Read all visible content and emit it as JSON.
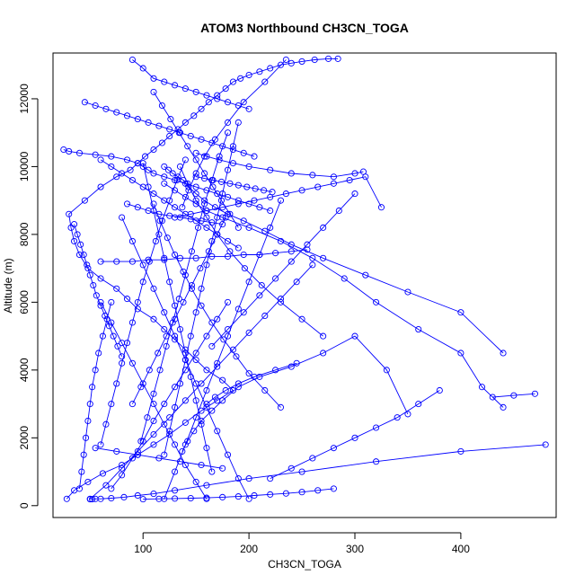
{
  "chart_data": {
    "type": "scatter",
    "title": "ATOM3 Northbound CH3CN_TOGA",
    "xlabel": "CH3CN_TOGA",
    "ylabel": "Altitude (m)",
    "xlim": [
      15,
      490
    ],
    "ylim": [
      -350,
      13350
    ],
    "x_ticks": [
      100,
      200,
      300,
      400
    ],
    "x_tick_labels": [
      "100",
      "200",
      "300",
      "400"
    ],
    "y_ticks": [
      0,
      2000,
      4000,
      6000,
      8000,
      10000,
      12000
    ],
    "y_tick_labels": [
      "0",
      "2000",
      "4000",
      "6000",
      "8000",
      "10000",
      "12000"
    ],
    "grid": false,
    "color": "#0000ff",
    "marker": "open-circle",
    "connected": true,
    "series": [
      {
        "x": [
          28,
          35,
          48,
          62,
          80,
          95,
          110,
          125,
          140,
          155,
          170,
          185,
          175,
          160,
          150,
          140,
          130,
          120,
          110,
          95,
          85,
          75,
          60,
          48,
          40,
          35,
          32,
          30,
          45,
          60,
          75,
          88,
          95,
          102,
          110,
          118,
          125,
          133,
          140,
          148,
          155,
          162,
          170,
          178,
          185,
          192,
          200,
          210,
          220,
          230,
          240,
          250,
          262,
          275,
          284
        ],
        "y": [
          200,
          450,
          700,
          950,
          1200,
          1500,
          1800,
          2100,
          2450,
          2800,
          3100,
          3400,
          3700,
          4000,
          4300,
          4600,
          4900,
          5200,
          5500,
          5800,
          6100,
          6400,
          6700,
          7000,
          7400,
          7800,
          8200,
          8600,
          9000,
          9400,
          9700,
          9900,
          10100,
          10300,
          10500,
          10700,
          10900,
          11100,
          11300,
          11500,
          11700,
          11900,
          12100,
          12300,
          12500,
          12600,
          12700,
          12800,
          12900,
          13000,
          13050,
          13100,
          13150,
          13180,
          13180
        ]
      },
      {
        "x": [
          480,
          400,
          320,
          250,
          200,
          160,
          130,
          110,
          95,
          82,
          70,
          60,
          55,
          52,
          50
        ],
        "y": [
          1800,
          1600,
          1300,
          1000,
          800,
          600,
          450,
          350,
          300,
          250,
          220,
          200,
          200,
          190,
          190
        ]
      },
      {
        "x": [
          470,
          450,
          430,
          440,
          420,
          400,
          360,
          320,
          290,
          260,
          230,
          200,
          175,
          160,
          150,
          140,
          130,
          120
        ],
        "y": [
          3300,
          3250,
          3200,
          2900,
          3500,
          4500,
          5200,
          6000,
          6700,
          7300,
          7800,
          8200,
          8500,
          8700,
          8900,
          9100,
          9300,
          9500
        ]
      },
      {
        "x": [
          440,
          400,
          350,
          310,
          270,
          240,
          215,
          195,
          180,
          168,
          158,
          150,
          143,
          138,
          133,
          128,
          124,
          120
        ],
        "y": [
          4500,
          5700,
          6300,
          6800,
          7300,
          7700,
          8100,
          8400,
          8600,
          8800,
          9000,
          9200,
          9400,
          9600,
          9700,
          9800,
          9900,
          10000
        ]
      },
      {
        "x": [
          350,
          330,
          300,
          270,
          240,
          210,
          190,
          175,
          165,
          155,
          148,
          142,
          137
        ],
        "y": [
          2700,
          4000,
          5000,
          4500,
          4100,
          3800,
          3500,
          3100,
          2800,
          2500,
          2200,
          1900,
          1600
        ]
      },
      {
        "x": [
          308,
          300,
          280,
          260,
          240,
          220,
          200,
          185,
          172,
          160,
          150
        ],
        "y": [
          9850,
          9800,
          9700,
          9750,
          9800,
          9900,
          10000,
          10100,
          10200,
          10300,
          10400
        ]
      },
      {
        "x": [
          25,
          30,
          40,
          55,
          70,
          85,
          95,
          100,
          105,
          110,
          120,
          130,
          140,
          150,
          160,
          170,
          180,
          190,
          200,
          210,
          220
        ],
        "y": [
          10500,
          10450,
          10400,
          10350,
          10300,
          10200,
          10100,
          10000,
          9900,
          9800,
          9700,
          9600,
          9500,
          9400,
          9300,
          9200,
          9100,
          9000,
          8900,
          8800,
          8700
        ]
      },
      {
        "x": [
          45,
          55,
          65,
          75,
          85,
          95,
          105,
          115,
          125,
          135,
          145,
          155,
          165,
          175,
          185,
          195,
          205
        ],
        "y": [
          11900,
          11800,
          11700,
          11600,
          11500,
          11400,
          11300,
          11200,
          11100,
          11000,
          10900,
          10800,
          10700,
          10600,
          10500,
          10400,
          10300
        ]
      },
      {
        "x": [
          90,
          100,
          110,
          120,
          130,
          140,
          150,
          160,
          170,
          180,
          190,
          200
        ],
        "y": [
          13150,
          12900,
          12600,
          12500,
          12400,
          12300,
          12200,
          12100,
          12000,
          11900,
          11800,
          11700
        ]
      },
      {
        "x": [
          130,
          145,
          160,
          175,
          190,
          205,
          220,
          235,
          250,
          265,
          280,
          295,
          310,
          325
        ],
        "y": [
          8500,
          8600,
          8700,
          8800,
          8900,
          9000,
          9100,
          9200,
          9300,
          9400,
          9500,
          9600,
          9700,
          8800
        ]
      },
      {
        "x": [
          60,
          75,
          90,
          105,
          120,
          135,
          150,
          165,
          180,
          195,
          210,
          225,
          240,
          255
        ],
        "y": [
          7200,
          7200,
          7200,
          7250,
          7250,
          7300,
          7300,
          7350,
          7350,
          7400,
          7400,
          7450,
          7500,
          7550
        ]
      },
      {
        "x": [
          50,
          65,
          80,
          95,
          110,
          125,
          140,
          155,
          170,
          185,
          200,
          215,
          230,
          245,
          260
        ],
        "y": [
          200,
          600,
          1100,
          1600,
          2100,
          2600,
          3100,
          3600,
          4100,
          4600,
          5100,
          5600,
          6100,
          6600,
          7100
        ]
      },
      {
        "x": [
          70,
          80,
          90,
          100,
          110,
          120,
          130,
          140,
          150,
          160,
          170,
          180
        ],
        "y": [
          500,
          900,
          1400,
          1900,
          2500,
          3000,
          3500,
          4000,
          4500,
          5000,
          5500,
          6000
        ]
      },
      {
        "x": [
          160,
          150,
          140,
          130,
          120,
          110,
          100,
          90,
          80,
          70,
          60
        ],
        "y": [
          200,
          700,
          1200,
          1800,
          2400,
          3000,
          3600,
          4200,
          4800,
          5400,
          6000
        ]
      },
      {
        "x": [
          200,
          190,
          180,
          170,
          160,
          150,
          140,
          130,
          120,
          110,
          100,
          90,
          80
        ],
        "y": [
          200,
          800,
          1500,
          2200,
          2900,
          3600,
          4300,
          5000,
          5700,
          6400,
          7100,
          7800,
          8500
        ]
      },
      {
        "x": [
          120,
          130,
          140,
          150,
          160,
          170,
          180,
          190,
          200,
          210,
          220,
          230
        ],
        "y": [
          200,
          1000,
          1800,
          2600,
          3400,
          4200,
          5000,
          5800,
          6600,
          7400,
          8200,
          9000
        ]
      },
      {
        "x": [
          140,
          132,
          125,
          118,
          112,
          106,
          100,
          95,
          90,
          85,
          80,
          75,
          70,
          65,
          60
        ],
        "y": [
          10200,
          9600,
          9000,
          8400,
          7800,
          7200,
          6600,
          6000,
          5400,
          4800,
          4200,
          3600,
          3000,
          2400,
          1800
        ]
      },
      {
        "x": [
          180,
          172,
          165,
          158,
          152,
          146,
          140,
          134,
          128,
          122,
          116,
          110,
          104,
          98
        ],
        "y": [
          11000,
          10300,
          9600,
          8900,
          8200,
          7500,
          6800,
          6100,
          5400,
          4700,
          4000,
          3300,
          2600,
          1900
        ]
      },
      {
        "x": [
          230,
          215,
          200,
          188,
          176,
          165,
          155,
          146,
          138,
          130,
          123,
          116,
          110
        ],
        "y": [
          2900,
          3400,
          3900,
          4400,
          4900,
          5400,
          5900,
          6400,
          6900,
          7400,
          7900,
          8400,
          8900
        ]
      },
      {
        "x": [
          270,
          250,
          230,
          212,
          196,
          182,
          170,
          160,
          150,
          142,
          135
        ],
        "y": [
          5000,
          5500,
          6000,
          6500,
          7000,
          7500,
          8000,
          8500,
          9000,
          9500,
          10000
        ]
      },
      {
        "x": [
          40,
          42,
          44,
          46,
          48,
          50,
          52,
          55,
          58,
          62,
          66,
          70
        ],
        "y": [
          500,
          1000,
          1500,
          2000,
          2500,
          3000,
          3500,
          4000,
          4500,
          5000,
          5500,
          6000
        ]
      },
      {
        "x": [
          35,
          38,
          41,
          44,
          47,
          50,
          53,
          56,
          60,
          64,
          68,
          72,
          76,
          80
        ],
        "y": [
          8300,
          8000,
          7700,
          7400,
          7100,
          6800,
          6500,
          6200,
          5900,
          5600,
          5300,
          5000,
          4700,
          4400
        ]
      },
      {
        "x": [
          100,
          115,
          130,
          145,
          160,
          175,
          190,
          205,
          220,
          235,
          250,
          265,
          280
        ],
        "y": [
          190,
          200,
          210,
          220,
          230,
          250,
          270,
          300,
          330,
          360,
          400,
          450,
          500
        ]
      },
      {
        "x": [
          150,
          158,
          166,
          174,
          182,
          190,
          198,
          206,
          214,
          222
        ],
        "y": [
          9700,
          9650,
          9600,
          9550,
          9500,
          9450,
          9400,
          9350,
          9300,
          9250
        ]
      },
      {
        "x": [
          110,
          118,
          126,
          134,
          142,
          150,
          158,
          166,
          174,
          182,
          190
        ],
        "y": [
          12200,
          11800,
          11400,
          11000,
          10600,
          10200,
          9800,
          9400,
          9000,
          8600,
          8200
        ]
      },
      {
        "x": [
          85,
          95,
          105,
          115,
          125,
          135,
          145,
          155,
          165,
          175
        ],
        "y": [
          8900,
          8800,
          8700,
          8600,
          8550,
          8500,
          8450,
          8400,
          8350,
          8300
        ]
      },
      {
        "x": [
          235,
          215,
          195,
          180,
          168,
          158,
          150,
          143,
          137
        ],
        "y": [
          13150,
          12500,
          11900,
          11300,
          10800,
          10300,
          9800,
          9300,
          8800
        ]
      },
      {
        "x": [
          60,
          70,
          80,
          90,
          100,
          110,
          120,
          130,
          140,
          150,
          160,
          170,
          180,
          190
        ],
        "y": [
          10200,
          10000,
          9800,
          9600,
          9400,
          9200,
          9000,
          8800,
          8600,
          8400,
          8200,
          8000,
          7800,
          7600
        ]
      },
      {
        "x": [
          380,
          360,
          340,
          320,
          300,
          280,
          260,
          240,
          220
        ],
        "y": [
          3400,
          3000,
          2600,
          2300,
          2000,
          1700,
          1400,
          1100,
          800
        ]
      },
      {
        "x": [
          120,
          125,
          130,
          135,
          140,
          145,
          150,
          155,
          160,
          165,
          170,
          175,
          180,
          185,
          190
        ],
        "y": [
          1500,
          2200,
          2900,
          3600,
          4300,
          5000,
          5700,
          6400,
          7100,
          7800,
          8500,
          9200,
          9900,
          10600,
          11300
        ]
      },
      {
        "x": [
          165,
          160,
          155,
          150,
          145,
          140,
          135,
          130,
          125,
          120,
          115,
          110,
          105,
          100
        ],
        "y": [
          1000,
          1700,
          2400,
          3100,
          3800,
          4500,
          5200,
          5900,
          6600,
          7300,
          8000,
          8700,
          9400,
          10100
        ]
      },
      {
        "x": [
          90,
          98,
          106,
          114,
          122,
          130,
          138,
          146,
          154,
          162,
          170,
          178
        ],
        "y": [
          3000,
          3500,
          4000,
          4500,
          5000,
          5500,
          6000,
          6500,
          7000,
          7500,
          8000,
          8500
        ]
      },
      {
        "x": [
          300,
          285,
          270,
          255,
          240,
          225,
          210,
          195,
          180,
          165
        ],
        "y": [
          9200,
          8700,
          8200,
          7700,
          7200,
          6700,
          6200,
          5700,
          5200,
          4700
        ]
      },
      {
        "x": [
          55,
          75,
          95,
          115,
          135,
          155,
          175
        ],
        "y": [
          1700,
          1600,
          1500,
          1400,
          1300,
          1200,
          1100
        ]
      },
      {
        "x": [
          245,
          225,
          205,
          190,
          178,
          168,
          160
        ],
        "y": [
          4200,
          4000,
          3800,
          3600,
          3400,
          3200,
          3000
        ]
      }
    ]
  }
}
